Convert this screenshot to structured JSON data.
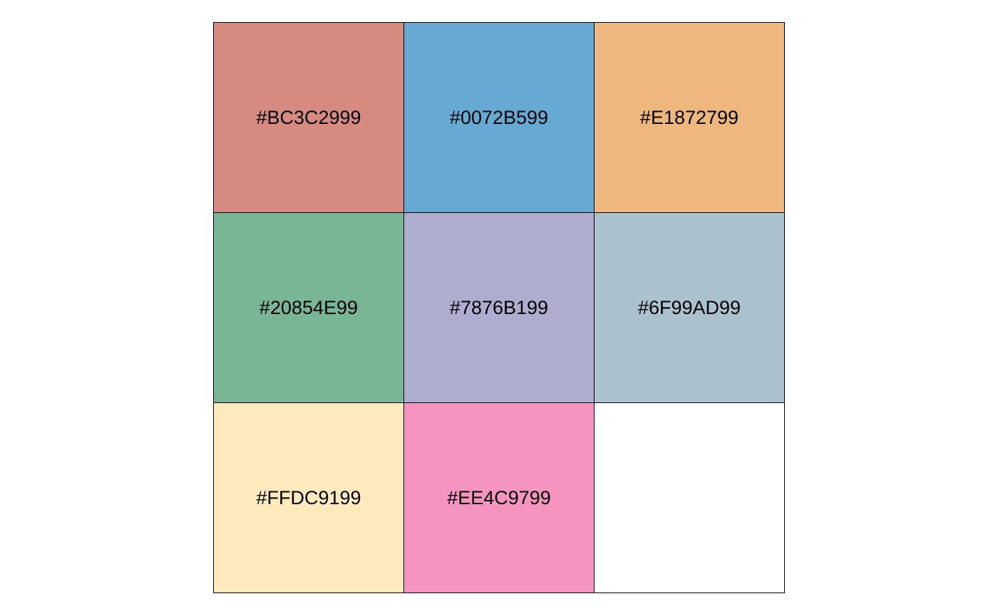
{
  "swatches": [
    {
      "label": "#BC3C2999",
      "color": "#BC3C2999"
    },
    {
      "label": "#0072B599",
      "color": "#0072B599"
    },
    {
      "label": "#E1872799",
      "color": "#E1872799"
    },
    {
      "label": "#20854E99",
      "color": "#20854E99"
    },
    {
      "label": "#7876B199",
      "color": "#7876B199"
    },
    {
      "label": "#6F99AD99",
      "color": "#6F99AD99"
    },
    {
      "label": "#FFDC9199",
      "color": "#FFDC9199"
    },
    {
      "label": "#EE4C9799",
      "color": "#EE4C9799"
    },
    {
      "label": "",
      "color": "#FFFFFF"
    }
  ]
}
